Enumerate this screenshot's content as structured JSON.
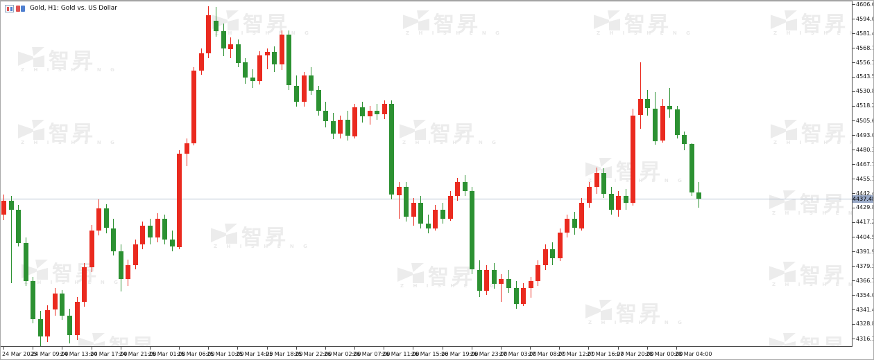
{
  "header": {
    "symbol_title": "Gold, H1:",
    "symbol_description": "Gold vs. US Dollar"
  },
  "watermark": {
    "cjk_text": "智昇",
    "latin_text": "Z H I S H E N G"
  },
  "colors": {
    "bull": "#ea2a1f",
    "bear": "#2c9132",
    "price_line": "#b3bfcf",
    "price_label_bg": "#9aaac8",
    "watermark": "#ececec",
    "axis_text": "#111111"
  },
  "y_axis": {
    "labels": [
      "4606.67",
      "4594.04",
      "4581.41",
      "4568.78",
      "4556.15",
      "4543.52",
      "4530.89",
      "4518.26",
      "4505.63",
      "4493.00",
      "4480.37",
      "4467.74",
      "4455.11",
      "4442.48",
      "4429.85",
      "4417.22",
      "4404.59",
      "4391.96",
      "4379.33",
      "4366.70",
      "4354.07",
      "4341.44",
      "4328.81",
      "4316.18"
    ],
    "current_price_label": "4437.48"
  },
  "x_axis": {
    "labels": [
      "24 Mar 2025",
      "24 Mar 09:00",
      "24 Mar 13:00",
      "24 Mar 17:00",
      "24 Mar 21:00",
      "25 Mar 01:00",
      "25 Mar 06:00",
      "25 Mar 10:00",
      "25 Mar 14:00",
      "25 Mar 18:00",
      "25 Mar 22:00",
      "26 Mar 02:00",
      "26 Mar 07:00",
      "26 Mar 11:00",
      "26 Mar 15:00",
      "26 Mar 19:00",
      "26 Mar 23:00",
      "27 Mar 03:00",
      "27 Mar 08:00",
      "27 Mar 12:00",
      "27 Mar 16:00",
      "27 Mar 20:00",
      "28 Mar 00:00",
      "28 Mar 04:00"
    ]
  },
  "chart_data": {
    "type": "candlestick",
    "title": "Gold vs. US Dollar",
    "timeframe": "H1",
    "x_range": [
      "24 Mar 2025",
      "28 Mar 04:00"
    ],
    "ylim": [
      4316.18,
      4606.67
    ],
    "current_price": 4437.48,
    "up_color_meaning": "red = bullish, green = bearish (CN convention)",
    "candles_ohlc": [
      [
        4424,
        4441,
        4419,
        4436
      ],
      [
        4436,
        4440,
        4364,
        4428
      ],
      [
        4428,
        4432,
        4396,
        4399
      ],
      [
        4399,
        4404,
        4362,
        4366
      ],
      [
        4366,
        4370,
        4330,
        4333
      ],
      [
        4333,
        4340,
        4309,
        4318
      ],
      [
        4318,
        4345,
        4313,
        4341
      ],
      [
        4341,
        4360,
        4336,
        4355
      ],
      [
        4355,
        4358,
        4332,
        4336
      ],
      [
        4336,
        4342,
        4312,
        4319
      ],
      [
        4319,
        4352,
        4315,
        4348
      ],
      [
        4348,
        4382,
        4344,
        4378
      ],
      [
        4378,
        4415,
        4374,
        4410
      ],
      [
        4410,
        4437,
        4406,
        4429
      ],
      [
        4429,
        4433,
        4408,
        4412
      ],
      [
        4412,
        4420,
        4388,
        4392
      ],
      [
        4392,
        4398,
        4357,
        4368
      ],
      [
        4368,
        4385,
        4362,
        4380
      ],
      [
        4380,
        4402,
        4376,
        4398
      ],
      [
        4398,
        4418,
        4394,
        4414
      ],
      [
        4414,
        4420,
        4398,
        4404
      ],
      [
        4404,
        4425,
        4400,
        4420
      ],
      [
        4420,
        4424,
        4398,
        4402
      ],
      [
        4402,
        4410,
        4392,
        4396
      ],
      [
        4396,
        4480,
        4394,
        4477
      ],
      [
        4477,
        4490,
        4466,
        4486
      ],
      [
        4486,
        4552,
        4484,
        4549
      ],
      [
        4549,
        4568,
        4545,
        4564
      ],
      [
        4564,
        4605,
        4560,
        4597
      ],
      [
        4592,
        4604,
        4578,
        4583
      ],
      [
        4583,
        4590,
        4562,
        4568
      ],
      [
        4568,
        4578,
        4560,
        4572
      ],
      [
        4572,
        4576,
        4552,
        4556
      ],
      [
        4556,
        4560,
        4538,
        4543
      ],
      [
        4543,
        4550,
        4534,
        4540
      ],
      [
        4540,
        4566,
        4537,
        4562
      ],
      [
        4562,
        4568,
        4550,
        4565
      ],
      [
        4565,
        4570,
        4548,
        4554
      ],
      [
        4554,
        4584,
        4550,
        4580
      ],
      [
        4580,
        4584,
        4532,
        4536
      ],
      [
        4536,
        4545,
        4518,
        4522
      ],
      [
        4522,
        4548,
        4518,
        4545
      ],
      [
        4545,
        4552,
        4528,
        4532
      ],
      [
        4532,
        4536,
        4510,
        4514
      ],
      [
        4514,
        4522,
        4500,
        4505
      ],
      [
        4505,
        4512,
        4489,
        4494
      ],
      [
        4494,
        4510,
        4490,
        4506
      ],
      [
        4506,
        4514,
        4488,
        4492
      ],
      [
        4492,
        4520,
        4490,
        4517
      ],
      [
        4517,
        4522,
        4504,
        4509
      ],
      [
        4509,
        4518,
        4502,
        4514
      ],
      [
        4514,
        4520,
        4506,
        4511
      ],
      [
        4511,
        4523,
        4507,
        4520
      ],
      [
        4520,
        4523,
        4437,
        4441
      ],
      [
        4441,
        4452,
        4420,
        4448
      ],
      [
        4448,
        4452,
        4418,
        4422
      ],
      [
        4422,
        4438,
        4414,
        4434
      ],
      [
        4434,
        4440,
        4412,
        4416
      ],
      [
        4416,
        4424,
        4408,
        4412
      ],
      [
        4412,
        4432,
        4410,
        4428
      ],
      [
        4428,
        4434,
        4416,
        4420
      ],
      [
        4420,
        4444,
        4418,
        4440
      ],
      [
        4440,
        4456,
        4436,
        4452
      ],
      [
        4452,
        4458,
        4440,
        4444
      ],
      [
        4444,
        4448,
        4372,
        4376
      ],
      [
        4376,
        4384,
        4352,
        4358
      ],
      [
        4358,
        4380,
        4354,
        4376
      ],
      [
        4376,
        4382,
        4360,
        4364
      ],
      [
        4364,
        4372,
        4348,
        4368
      ],
      [
        4368,
        4376,
        4356,
        4360
      ],
      [
        4360,
        4366,
        4342,
        4346
      ],
      [
        4346,
        4364,
        4344,
        4360
      ],
      [
        4360,
        4370,
        4352,
        4366
      ],
      [
        4366,
        4384,
        4362,
        4380
      ],
      [
        4380,
        4398,
        4376,
        4394
      ],
      [
        4394,
        4400,
        4380,
        4386
      ],
      [
        4386,
        4412,
        4384,
        4408
      ],
      [
        4408,
        4424,
        4404,
        4420
      ],
      [
        4420,
        4426,
        4406,
        4412
      ],
      [
        4412,
        4438,
        4410,
        4434
      ],
      [
        4434,
        4452,
        4430,
        4448
      ],
      [
        4448,
        4465,
        4442,
        4460
      ],
      [
        4460,
        4464,
        4438,
        4442
      ],
      [
        4442,
        4448,
        4424,
        4428
      ],
      [
        4428,
        4444,
        4422,
        4440
      ],
      [
        4440,
        4446,
        4428,
        4434
      ],
      [
        4434,
        4516,
        4432,
        4510
      ],
      [
        4510,
        4556,
        4498,
        4524
      ],
      [
        4524,
        4532,
        4510,
        4516
      ],
      [
        4516,
        4530,
        4484,
        4488
      ],
      [
        4488,
        4524,
        4486,
        4518
      ],
      [
        4518,
        4534,
        4508,
        4515
      ],
      [
        4515,
        4518,
        4490,
        4493
      ],
      [
        4493,
        4496,
        4480,
        4485
      ],
      [
        4485,
        4486,
        4440,
        4443
      ],
      [
        4443,
        4452,
        4430,
        4437.48
      ]
    ]
  }
}
